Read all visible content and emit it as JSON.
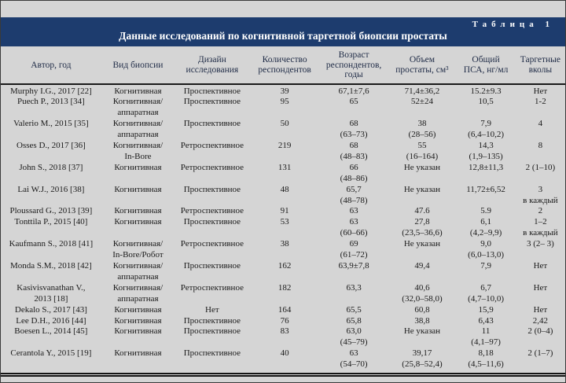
{
  "colors": {
    "caption_band": "#1d3c6e",
    "caption_text": "#ffffff",
    "header_text": "#1f2b46",
    "body_text": "#1b1b1b",
    "page_background": "#d5d5d5"
  },
  "caption": {
    "label": "Таблица 1",
    "title": "Данные исследований по когнитивной таргетной биопсии простаты"
  },
  "table": {
    "column_keys": [
      "author",
      "biopsy-type",
      "study-design",
      "respondents-count",
      "respondents-age",
      "prostate-volume",
      "total-psa",
      "targeted-shots"
    ],
    "columns": [
      "Автор, год",
      "Вид биопсии",
      "Дизайн\nисследования",
      "Количество\nреспондентов",
      "Возраст\nреспондентов,\nгоды",
      "Объем\nпростаты, см³",
      "Общий\nПСА, нг/мл",
      "Таргетные\nвколы"
    ],
    "rows": [
      [
        "Murphy I.G., 2017 [22]",
        "Когнитивная",
        "Проспективное",
        "39",
        "67,1±7,6",
        "71,4±36,2",
        "15.2±9.3",
        "Нет"
      ],
      [
        "Puech P., 2013 [34]",
        "Когнитивная/\nаппаратная",
        "Проспективное",
        "95",
        "65",
        "52±24",
        "10,5",
        "1-2"
      ],
      [
        "Valerio M., 2015 [35]",
        "Когнитивная/\nаппаратная",
        "Проспективное",
        "50",
        "68\n(63–73)",
        "38\n(28–56)",
        "7,9\n(6,4–10,2)",
        "4"
      ],
      [
        "Osses D., 2017 [36]",
        "Когнитивная/\nIn-Bore",
        "Ретроспективное",
        "219",
        "68\n(48–83)",
        "55\n(16–164)",
        "14,3\n(1,9–135)",
        "8"
      ],
      [
        "John S., 2018 [37]",
        "Когнитивная",
        "Ретроспективное",
        "131",
        "66\n(48–86)",
        "Не указан",
        "12,8±11,3",
        "2 (1–10)"
      ],
      [
        "Lai W.J., 2016 [38]",
        "Когнитивная",
        "Проспективное",
        "48",
        "65,7\n(48–78)",
        "Не указан",
        "11,72±6,52",
        "3\nв каждый"
      ],
      [
        "Ploussard G., 2013 [39]",
        "Когнитивная",
        "Ретроспективное",
        "91",
        "63",
        "47.6",
        "5.9",
        "2"
      ],
      [
        "Tonttila P., 2015 [40]",
        "Когнитивная",
        "Проспективное",
        "53",
        "63\n(60–66)",
        "27,8\n(23,5–36,6)",
        "6,1\n(4,2–9,9)",
        "1–2\nв каждый"
      ],
      [
        "Kaufmann S., 2018 [41]",
        "Когнитивная/\nIn-Bore/Робот",
        "Ретроспективное",
        "38",
        "69\n(61–72)",
        "Не указан",
        "9,0\n(6,0–13,0)",
        "3 (2– 3)"
      ],
      [
        "Monda S.M., 2018 [42]",
        "Когнитивная/\nаппаратная",
        "Проспективное",
        "162",
        "63,9±7,8",
        "49,4",
        "7,9",
        "Нет"
      ],
      [
        "Kasivisvanathan V.,\n2013 [18]",
        "Когнитивная/\nаппаратная",
        "Ретроспективное",
        "182",
        "63,3",
        "40,6\n(32,0–58,0)",
        "6,7\n(4,7–10,0)",
        "Нет"
      ],
      [
        "Dekalo S., 2017 [43]",
        "Когнитивная",
        "Нет",
        "164",
        "65,5",
        "60,8",
        "15,9",
        "Нет"
      ],
      [
        "Lee D.H., 2016 [44]",
        "Когнитивная",
        "Проспективное",
        "76",
        "65,8",
        "38,8",
        "6,43",
        "2,42"
      ],
      [
        "Boesen L., 2014 [45]",
        "Когнитивная",
        "Проспективное",
        "83",
        "63,0\n(45–79)",
        "Не указан",
        "11\n(4,1–97)",
        "2 (0–4)"
      ],
      [
        "Cerantola Y., 2015 [19]",
        "Когнитивная",
        "Проспективное",
        "40",
        "63\n(54–70)",
        "39,17\n(25,8–52,4)",
        "8,18\n(4,5–11,6)",
        "2 (1–7)"
      ]
    ]
  }
}
